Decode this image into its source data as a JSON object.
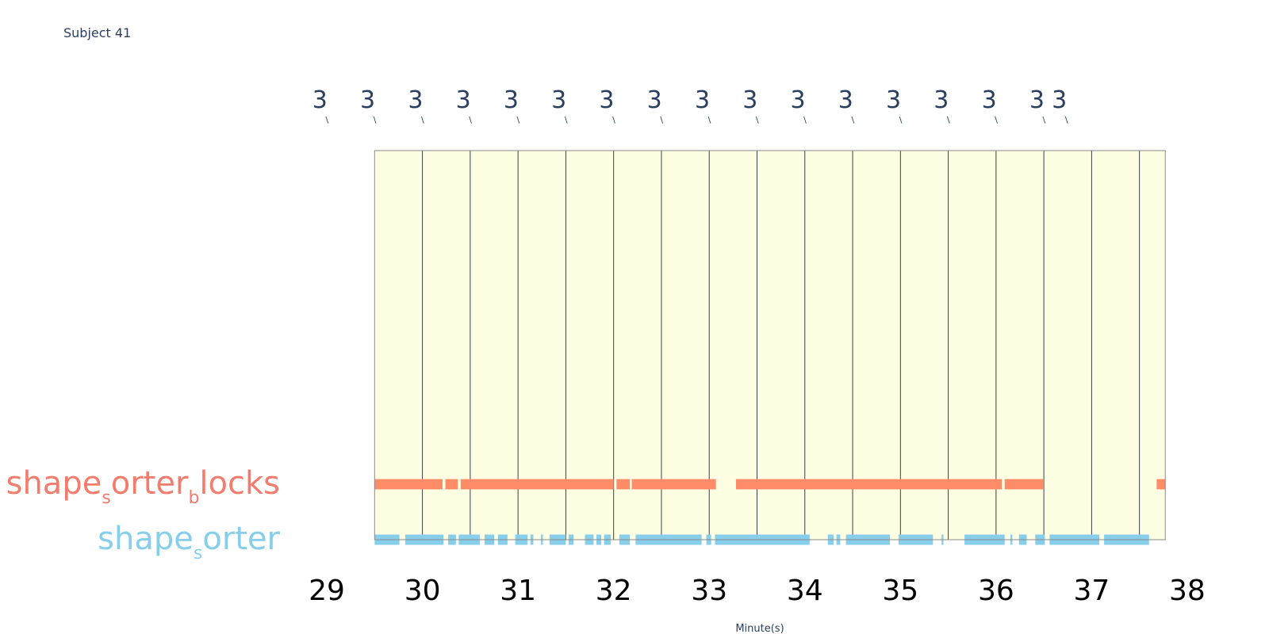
{
  "subject_label": "Subject 41",
  "chart_data": {
    "type": "timeline",
    "x_axis_title": "Minute(s)",
    "xlim": [
      28.9,
      38.1
    ],
    "x_ticks": [
      29,
      30,
      31,
      32,
      33,
      34,
      35,
      36,
      37,
      38
    ],
    "top_markers": {
      "times": [
        29.5,
        30.0,
        30.5,
        31.0,
        31.5,
        32.0,
        32.5,
        33.0,
        33.5,
        34.0,
        34.5,
        35.0,
        35.5,
        36.0,
        36.5,
        37.0,
        37.5
      ],
      "label": "3",
      "sublabel": "\\"
    },
    "shaded_region": [
      29.5,
      37.77
    ],
    "region_color": "#fefee3",
    "vertical_lines": [
      30.0,
      30.5,
      31.0,
      31.5,
      32.0,
      32.5,
      33.0,
      33.5,
      34.0,
      34.5,
      35.0,
      35.5,
      36.0,
      36.5,
      37.0,
      37.5
    ],
    "tracks": [
      {
        "name": "shape_sorter_blocks",
        "label_parts": [
          "shape",
          "s",
          "orter",
          "b",
          "locks"
        ],
        "color": "#ff8c69",
        "label_color": "#f47c6c",
        "segments": [
          [
            29.5,
            30.21
          ],
          [
            30.24,
            30.37
          ],
          [
            30.4,
            32.0
          ],
          [
            32.03,
            32.17
          ],
          [
            32.19,
            33.07
          ],
          [
            33.28,
            36.06
          ],
          [
            36.09,
            36.5
          ],
          [
            37.68,
            37.77
          ]
        ]
      },
      {
        "name": "shape_sorter",
        "label_parts": [
          "shape",
          "s",
          "orter"
        ],
        "color": "#87ceeb",
        "label_color": "#87ceeb",
        "segments": [
          [
            29.5,
            29.76
          ],
          [
            29.82,
            30.22
          ],
          [
            30.27,
            30.35
          ],
          [
            30.38,
            30.6
          ],
          [
            30.65,
            30.75
          ],
          [
            30.79,
            30.89
          ],
          [
            30.97,
            31.1
          ],
          [
            31.13,
            31.16
          ],
          [
            31.24,
            31.26
          ],
          [
            31.33,
            31.5
          ],
          [
            31.53,
            31.58
          ],
          [
            31.7,
            31.79
          ],
          [
            31.82,
            31.87
          ],
          [
            31.9,
            31.97
          ],
          [
            32.06,
            32.17
          ],
          [
            32.23,
            32.92
          ],
          [
            32.97,
            33.02
          ],
          [
            33.06,
            34.05
          ],
          [
            34.24,
            34.3
          ],
          [
            34.33,
            34.37
          ],
          [
            34.43,
            34.89
          ],
          [
            34.98,
            35.34
          ],
          [
            35.43,
            35.45
          ],
          [
            35.67,
            36.09
          ],
          [
            36.15,
            36.17
          ],
          [
            36.24,
            36.32
          ],
          [
            36.41,
            36.51
          ],
          [
            36.56,
            37.08
          ],
          [
            37.13,
            37.6
          ]
        ]
      }
    ]
  }
}
